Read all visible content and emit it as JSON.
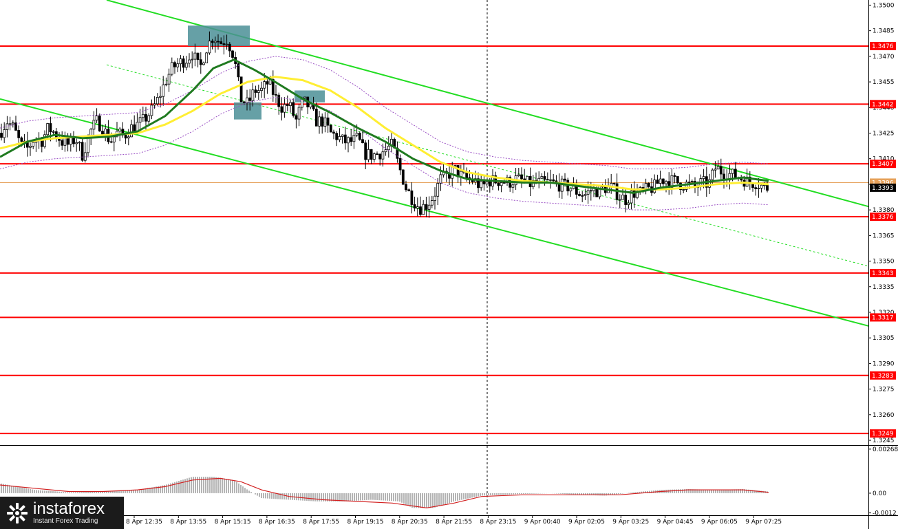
{
  "chart_data": {
    "type": "candlestick",
    "price_axis": {
      "range": [
        1.3243,
        1.3503
      ],
      "ticks": [
        "1.3500",
        "1.3485",
        "1.3470",
        "1.3455",
        "1.3440",
        "1.3425",
        "1.3410",
        "1.3395",
        "1.3380",
        "1.3365",
        "1.3350",
        "1.3335",
        "1.3320",
        "1.3305",
        "1.3290",
        "1.3275",
        "1.3260",
        "1.3245"
      ]
    },
    "levels": [
      {
        "value": 1.3476,
        "label": "1.3476"
      },
      {
        "value": 1.3442,
        "label": "1.3442"
      },
      {
        "value": 1.3407,
        "label": "1.3407"
      },
      {
        "value": 1.3376,
        "label": "1.3376"
      },
      {
        "value": 1.3343,
        "label": "1.3343"
      },
      {
        "value": 1.3317,
        "label": "1.3317"
      },
      {
        "value": 1.3283,
        "label": "1.3283"
      },
      {
        "value": 1.3249,
        "label": "1.3249"
      }
    ],
    "current_price": {
      "value": 1.3393,
      "label": "1.3393"
    },
    "last_price_line": {
      "value": 1.3396,
      "label": "1.3396"
    },
    "time_axis": [
      "8 Apr 12:35",
      "8 Apr 13:55",
      "8 Apr 15:15",
      "8 Apr 16:35",
      "8 Apr 17:55",
      "8 Apr 19:15",
      "8 Apr 20:35",
      "8 Apr 21:55",
      "8 Apr 23:15",
      "9 Apr 00:40",
      "9 Apr 02:05",
      "9 Apr 03:25",
      "9 Apr 04:45",
      "9 Apr 06:05",
      "9 Apr 07:25"
    ],
    "close_path": [
      [
        0,
        1.3425
      ],
      [
        10,
        1.3432
      ],
      [
        20,
        1.3428
      ],
      [
        30,
        1.3418
      ],
      [
        40,
        1.3416
      ],
      [
        50,
        1.3422
      ],
      [
        60,
        1.342
      ],
      [
        70,
        1.3428
      ],
      [
        80,
        1.3425
      ],
      [
        90,
        1.342
      ],
      [
        100,
        1.3418
      ],
      [
        110,
        1.3422
      ],
      [
        120,
        1.3412
      ],
      [
        130,
        1.3425
      ],
      [
        140,
        1.3432
      ],
      [
        150,
        1.3428
      ],
      [
        160,
        1.342
      ],
      [
        170,
        1.3425
      ],
      [
        180,
        1.3423
      ],
      [
        190,
        1.3428
      ],
      [
        200,
        1.343
      ],
      [
        210,
        1.3433
      ],
      [
        220,
        1.3438
      ],
      [
        230,
        1.3445
      ],
      [
        240,
        1.3455
      ],
      [
        250,
        1.3463
      ],
      [
        260,
        1.3466
      ],
      [
        270,
        1.3468
      ],
      [
        280,
        1.3472
      ],
      [
        290,
        1.3462
      ],
      [
        300,
        1.3475
      ],
      [
        310,
        1.3482
      ],
      [
        320,
        1.3478
      ],
      [
        330,
        1.348
      ],
      [
        340,
        1.347
      ],
      [
        350,
        1.3445
      ],
      [
        360,
        1.3442
      ],
      [
        370,
        1.345
      ],
      [
        380,
        1.345
      ],
      [
        390,
        1.3455
      ],
      [
        400,
        1.3446
      ],
      [
        410,
        1.344
      ],
      [
        420,
        1.3442
      ],
      [
        430,
        1.3432
      ],
      [
        440,
        1.3444
      ],
      [
        450,
        1.344
      ],
      [
        460,
        1.3432
      ],
      [
        470,
        1.3432
      ],
      [
        480,
        1.3425
      ],
      [
        490,
        1.3423
      ],
      [
        500,
        1.342
      ],
      [
        510,
        1.342
      ],
      [
        520,
        1.3422
      ],
      [
        530,
        1.3413
      ],
      [
        540,
        1.3412
      ],
      [
        550,
        1.3413
      ],
      [
        560,
        1.3415
      ],
      [
        570,
        1.3418
      ],
      [
        580,
        1.3405
      ],
      [
        590,
        1.3393
      ],
      [
        600,
        1.3386
      ],
      [
        610,
        1.3381
      ],
      [
        620,
        1.3383
      ],
      [
        630,
        1.3388
      ],
      [
        640,
        1.3398
      ],
      [
        650,
        1.34
      ],
      [
        660,
        1.3404
      ],
      [
        670,
        1.34
      ],
      [
        680,
        1.3398
      ],
      [
        690,
        1.3397
      ],
      [
        700,
        1.3393
      ],
      [
        710,
        1.3397
      ],
      [
        720,
        1.3397
      ],
      [
        730,
        1.3397
      ],
      [
        740,
        1.3396
      ],
      [
        750,
        1.3398
      ],
      [
        760,
        1.3397
      ],
      [
        770,
        1.3395
      ],
      [
        780,
        1.3396
      ],
      [
        790,
        1.3396
      ],
      [
        800,
        1.3396
      ],
      [
        810,
        1.3395
      ],
      [
        820,
        1.3394
      ],
      [
        830,
        1.3393
      ],
      [
        840,
        1.339
      ],
      [
        850,
        1.3389
      ],
      [
        860,
        1.3392
      ],
      [
        870,
        1.3391
      ],
      [
        880,
        1.3393
      ],
      [
        890,
        1.3393
      ],
      [
        900,
        1.3388
      ],
      [
        910,
        1.3386
      ],
      [
        920,
        1.339
      ],
      [
        930,
        1.339
      ],
      [
        940,
        1.3392
      ],
      [
        950,
        1.3393
      ],
      [
        960,
        1.3398
      ],
      [
        970,
        1.3397
      ],
      [
        980,
        1.3397
      ],
      [
        990,
        1.3395
      ],
      [
        1000,
        1.3395
      ],
      [
        1010,
        1.3393
      ],
      [
        1020,
        1.3396
      ],
      [
        1030,
        1.3395
      ],
      [
        1040,
        1.3405
      ],
      [
        1050,
        1.3402
      ],
      [
        1060,
        1.3401
      ],
      [
        1070,
        1.34
      ],
      [
        1080,
        1.3398
      ],
      [
        1090,
        1.3396
      ],
      [
        1100,
        1.3396
      ],
      [
        1110,
        1.3393
      ],
      [
        1117,
        1.3393
      ]
    ],
    "ma_fast": [
      [
        0,
        1.3411
      ],
      [
        40,
        1.342
      ],
      [
        80,
        1.3424
      ],
      [
        120,
        1.3422
      ],
      [
        160,
        1.3423
      ],
      [
        200,
        1.3426
      ],
      [
        240,
        1.3435
      ],
      [
        280,
        1.345
      ],
      [
        310,
        1.3463
      ],
      [
        340,
        1.3468
      ],
      [
        370,
        1.3462
      ],
      [
        400,
        1.3455
      ],
      [
        440,
        1.3445
      ],
      [
        480,
        1.3437
      ],
      [
        520,
        1.3428
      ],
      [
        560,
        1.342
      ],
      [
        600,
        1.341
      ],
      [
        640,
        1.3403
      ],
      [
        680,
        1.3398
      ],
      [
        720,
        1.3397
      ],
      [
        760,
        1.3396
      ],
      [
        800,
        1.3396
      ],
      [
        840,
        1.3394
      ],
      [
        880,
        1.3392
      ],
      [
        920,
        1.339
      ],
      [
        960,
        1.3393
      ],
      [
        1000,
        1.3395
      ],
      [
        1040,
        1.3397
      ],
      [
        1080,
        1.3399
      ],
      [
        1117,
        1.3397
      ]
    ],
    "ma_slow": [
      [
        0,
        1.3416
      ],
      [
        40,
        1.342
      ],
      [
        80,
        1.3422
      ],
      [
        120,
        1.3423
      ],
      [
        160,
        1.3424
      ],
      [
        200,
        1.3425
      ],
      [
        240,
        1.343
      ],
      [
        280,
        1.3438
      ],
      [
        320,
        1.3448
      ],
      [
        360,
        1.3455
      ],
      [
        400,
        1.3458
      ],
      [
        440,
        1.3456
      ],
      [
        480,
        1.345
      ],
      [
        520,
        1.344
      ],
      [
        560,
        1.3428
      ],
      [
        600,
        1.3418
      ],
      [
        640,
        1.3408
      ],
      [
        680,
        1.3402
      ],
      [
        720,
        1.3399
      ],
      [
        760,
        1.3397
      ],
      [
        800,
        1.3396
      ],
      [
        840,
        1.3395
      ],
      [
        880,
        1.3394
      ],
      [
        920,
        1.3392
      ],
      [
        960,
        1.3392
      ],
      [
        1000,
        1.3393
      ],
      [
        1040,
        1.3395
      ],
      [
        1080,
        1.3396
      ],
      [
        1117,
        1.3395
      ]
    ],
    "ma_dotted": [
      [
        155,
        1.3465
      ],
      [
        1262,
        1.3347
      ]
    ],
    "channel_upper": [
      [
        155,
        1.3503
      ],
      [
        1262,
        1.3382
      ]
    ],
    "channel_lower": [
      [
        0,
        1.3445
      ],
      [
        1262,
        1.3312
      ]
    ],
    "highlight_boxes": [
      {
        "x0": 273,
        "x1": 363,
        "hi": 1.3488,
        "lo": 1.3476
      },
      {
        "x0": 340,
        "x1": 380,
        "hi": 1.3443,
        "lo": 1.3433
      },
      {
        "x0": 428,
        "x1": 472,
        "hi": 1.345,
        "lo": 1.3443
      }
    ],
    "session_divider_x": 708,
    "macd": {
      "axis_ticks": [
        "0.00268",
        "0.00",
        "-0.0012"
      ],
      "range": [
        -0.0013,
        0.0028
      ],
      "histogram": [
        [
          0,
          0.0006
        ],
        [
          50,
          0.0002
        ],
        [
          100,
          5e-05
        ],
        [
          150,
          0.0001
        ],
        [
          200,
          0.0002
        ],
        [
          240,
          0.0005
        ],
        [
          280,
          0.001
        ],
        [
          310,
          0.001
        ],
        [
          340,
          0.0008
        ],
        [
          360,
          0.0002
        ],
        [
          380,
          -0.0003
        ],
        [
          420,
          -0.0004
        ],
        [
          460,
          -0.0005
        ],
        [
          500,
          -0.0005
        ],
        [
          540,
          -0.0004
        ],
        [
          580,
          -0.0005
        ],
        [
          600,
          -0.0009
        ],
        [
          630,
          -0.0009
        ],
        [
          660,
          -0.0005
        ],
        [
          700,
          -0.00015
        ],
        [
          760,
          -5e-05
        ],
        [
          800,
          0.0
        ],
        [
          840,
          -0.0001
        ],
        [
          880,
          -0.00015
        ],
        [
          920,
          5e-05
        ],
        [
          960,
          0.0002
        ],
        [
          1000,
          0.00025
        ],
        [
          1040,
          0.0002
        ],
        [
          1080,
          0.00025
        ],
        [
          1117,
          0.0001
        ]
      ],
      "signal": [
        [
          0,
          0.0005
        ],
        [
          50,
          0.0003
        ],
        [
          100,
          0.0001
        ],
        [
          150,
          0.0001
        ],
        [
          200,
          0.0002
        ],
        [
          240,
          0.0004
        ],
        [
          280,
          0.0008
        ],
        [
          320,
          0.0009
        ],
        [
          350,
          0.0007
        ],
        [
          380,
          0.0002
        ],
        [
          420,
          -0.0002
        ],
        [
          470,
          -0.0004
        ],
        [
          520,
          -0.0005
        ],
        [
          570,
          -0.0006
        ],
        [
          620,
          -0.0009
        ],
        [
          660,
          -0.0006
        ],
        [
          700,
          -0.0002
        ],
        [
          760,
          -0.0001
        ],
        [
          840,
          -0.0001
        ],
        [
          900,
          -0.0001
        ],
        [
          960,
          0.0001
        ],
        [
          1000,
          0.0002
        ],
        [
          1040,
          0.0002
        ],
        [
          1080,
          0.0002
        ],
        [
          1117,
          5e-05
        ]
      ]
    }
  },
  "branding": {
    "brand": "instaforex",
    "tagline": "Instant Forex Trading"
  },
  "colors": {
    "level_line": "#ff0000",
    "channel": "#22dd22",
    "ma_fast": "#1f7a1f",
    "ma_slow": "#ffee33",
    "candle": "#000000",
    "highlight": "#4b8f96",
    "macd_hist": "#b4b4b4",
    "macd_signal": "#d22020"
  }
}
